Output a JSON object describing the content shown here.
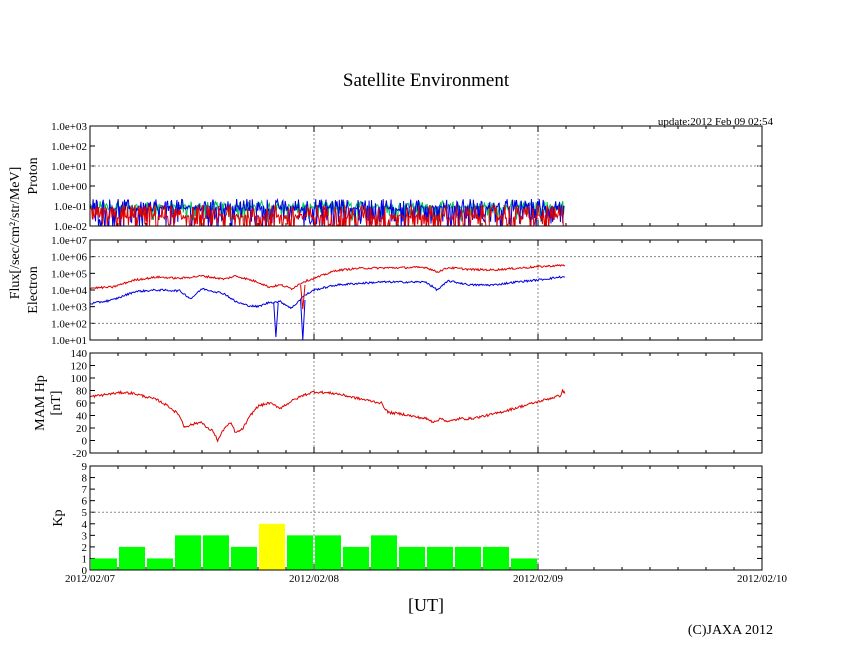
{
  "chart_data": {
    "type": "line",
    "title": "Satellite Environment",
    "update_text": "update:2012 Feb 09 02:54",
    "xlabel": "[UT]",
    "copyright": "(C)JAXA 2012",
    "x_range_days": [
      0,
      3
    ],
    "x_ticks": [
      {
        "day": 0,
        "label": "2012/02/07"
      },
      {
        "day": 1,
        "label": "2012/02/08"
      },
      {
        "day": 2,
        "label": "2012/02/09"
      },
      {
        "day": 3,
        "label": "2012/02/10"
      }
    ],
    "shared_ylabel": "Flux[/sec/cm²/str/MeV]",
    "colors": {
      "red": "#e00000",
      "blue": "#0000e0",
      "green": "#00c060",
      "kp_green": "#00ff00",
      "kp_yellow": "#ffff00",
      "grid": "#888888"
    },
    "panels": [
      {
        "name": "proton",
        "ylabel": "Proton",
        "scale": "log",
        "ylim_exp": [
          -2,
          3
        ],
        "y_ticks": [
          "1.0e-02",
          "1.0e-01",
          "1.0e+00",
          "1.0e+01",
          "1.0e+02",
          "1.0e+03"
        ],
        "data_end_day": 2.12,
        "series": [
          {
            "name": "proton-green",
            "color": "green",
            "level": 0.09,
            "noise_low": 0.05,
            "noise_high": 0.13
          },
          {
            "name": "proton-blue",
            "color": "blue",
            "level": 0.08,
            "noise_low": 0.02,
            "noise_high": 0.16
          },
          {
            "name": "proton-red",
            "color": "red",
            "level": 0.03,
            "noise_low": 0.01,
            "noise_high": 0.08
          }
        ]
      },
      {
        "name": "electron",
        "ylabel": "Electron",
        "scale": "log",
        "ylim_exp": [
          1,
          7
        ],
        "y_ticks": [
          "1.0e+01",
          "1.0e+02",
          "1.0e+03",
          "1.0e+04",
          "1.0e+05",
          "1.0e+06",
          "1.0e+07"
        ],
        "series": [
          {
            "name": "electron-red",
            "color": "red",
            "points": [
              [
                0,
                13000
              ],
              [
                0.1,
                15000
              ],
              [
                0.2,
                40000
              ],
              [
                0.3,
                60000
              ],
              [
                0.4,
                50000
              ],
              [
                0.5,
                70000
              ],
              [
                0.6,
                45000
              ],
              [
                0.65,
                70000
              ],
              [
                0.75,
                30000
              ],
              [
                0.8,
                15000
              ],
              [
                0.85,
                20000
              ],
              [
                0.9,
                12000
              ],
              [
                0.95,
                30000
              ],
              [
                1.0,
                50000
              ],
              [
                1.1,
                150000
              ],
              [
                1.2,
                200000
              ],
              [
                1.3,
                210000
              ],
              [
                1.4,
                220000
              ],
              [
                1.5,
                230000
              ],
              [
                1.55,
                120000
              ],
              [
                1.6,
                220000
              ],
              [
                1.7,
                170000
              ],
              [
                1.8,
                160000
              ],
              [
                1.9,
                200000
              ],
              [
                2.0,
                250000
              ],
              [
                2.1,
                300000
              ],
              [
                2.12,
                300000
              ]
            ]
          },
          {
            "name": "electron-blue",
            "color": "blue",
            "points": [
              [
                0,
                1500
              ],
              [
                0.1,
                2500
              ],
              [
                0.2,
                8000
              ],
              [
                0.3,
                10000
              ],
              [
                0.4,
                9000
              ],
              [
                0.45,
                3000
              ],
              [
                0.5,
                12000
              ],
              [
                0.6,
                6000
              ],
              [
                0.65,
                2000
              ],
              [
                0.7,
                1200
              ],
              [
                0.75,
                1000
              ],
              [
                0.8,
                1800
              ],
              [
                0.85,
                2000
              ],
              [
                0.9,
                800
              ],
              [
                0.95,
                4000
              ],
              [
                1.0,
                10000
              ],
              [
                1.1,
                20000
              ],
              [
                1.2,
                25000
              ],
              [
                1.3,
                30000
              ],
              [
                1.4,
                30000
              ],
              [
                1.5,
                30000
              ],
              [
                1.55,
                10000
              ],
              [
                1.6,
                35000
              ],
              [
                1.7,
                20000
              ],
              [
                1.8,
                20000
              ],
              [
                1.9,
                30000
              ],
              [
                2.0,
                40000
              ],
              [
                2.1,
                60000
              ],
              [
                2.12,
                60000
              ]
            ]
          }
        ],
        "dips": [
          {
            "name": "electron-dip-1",
            "color": "blue",
            "points": [
              [
                0.82,
                1800
              ],
              [
                0.83,
                15
              ],
              [
                0.84,
                1700
              ]
            ]
          },
          {
            "name": "electron-dip-2",
            "color": "blue",
            "points": [
              [
                0.94,
                2500
              ],
              [
                0.95,
                10
              ],
              [
                0.96,
                2500
              ]
            ]
          },
          {
            "name": "electron-dip-3",
            "color": "red",
            "points": [
              [
                0.94,
                20000
              ],
              [
                0.95,
                700
              ],
              [
                0.96,
                20000
              ]
            ]
          }
        ]
      },
      {
        "name": "hp",
        "ylabel_lines": [
          "MAM Hp",
          "[nT]"
        ],
        "scale": "linear",
        "ylim": [
          -20,
          140
        ],
        "y_ticks": [
          -20,
          0,
          20,
          40,
          60,
          80,
          100,
          120,
          140
        ],
        "series": [
          {
            "name": "hp-red",
            "color": "red",
            "points": [
              [
                0,
                70
              ],
              [
                0.1,
                75
              ],
              [
                0.15,
                77
              ],
              [
                0.2,
                75
              ],
              [
                0.3,
                65
              ],
              [
                0.35,
                55
              ],
              [
                0.4,
                40
              ],
              [
                0.42,
                22
              ],
              [
                0.45,
                25
              ],
              [
                0.5,
                30
              ],
              [
                0.52,
                20
              ],
              [
                0.55,
                15
              ],
              [
                0.57,
                0
              ],
              [
                0.6,
                20
              ],
              [
                0.63,
                28
              ],
              [
                0.65,
                12
              ],
              [
                0.68,
                18
              ],
              [
                0.72,
                42
              ],
              [
                0.75,
                55
              ],
              [
                0.8,
                60
              ],
              [
                0.85,
                52
              ],
              [
                0.9,
                63
              ],
              [
                0.95,
                72
              ],
              [
                1.0,
                78
              ],
              [
                1.1,
                75
              ],
              [
                1.2,
                67
              ],
              [
                1.3,
                60
              ],
              [
                1.33,
                45
              ],
              [
                1.4,
                42
              ],
              [
                1.45,
                38
              ],
              [
                1.5,
                35
              ],
              [
                1.53,
                30
              ],
              [
                1.57,
                35
              ],
              [
                1.6,
                30
              ],
              [
                1.65,
                35
              ],
              [
                1.7,
                35
              ],
              [
                1.8,
                42
              ],
              [
                1.9,
                52
              ],
              [
                2.0,
                62
              ],
              [
                2.05,
                67
              ],
              [
                2.1,
                72
              ],
              [
                2.11,
                80
              ],
              [
                2.12,
                75
              ]
            ]
          }
        ]
      },
      {
        "name": "kp",
        "ylabel": "Kp",
        "scale": "linear",
        "ylim": [
          0,
          9
        ],
        "y_ticks": [
          0,
          1,
          2,
          3,
          4,
          5,
          6,
          7,
          8,
          9
        ],
        "bar_width_days": 0.125,
        "bars": [
          1,
          2,
          1,
          3,
          3,
          2,
          4,
          3,
          3,
          2,
          3,
          2,
          2,
          2,
          2,
          1
        ],
        "bar_colors": [
          "kp_green",
          "kp_green",
          "kp_green",
          "kp_green",
          "kp_green",
          "kp_green",
          "kp_yellow",
          "kp_green",
          "kp_green",
          "kp_green",
          "kp_green",
          "kp_green",
          "kp_green",
          "kp_green",
          "kp_green",
          "kp_green"
        ],
        "dashed_levels": [
          5
        ]
      }
    ]
  }
}
